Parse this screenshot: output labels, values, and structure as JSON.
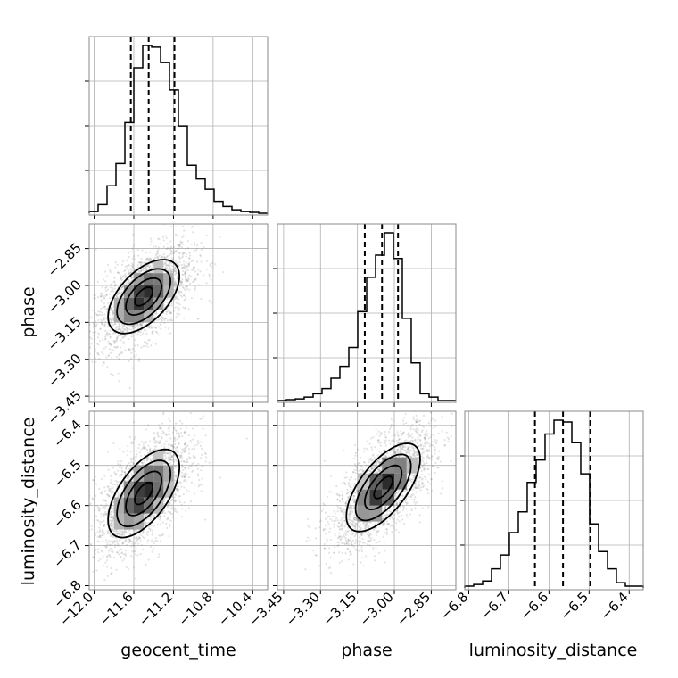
{
  "chart_data": {
    "type": "corner",
    "parameters": [
      "geocent_time",
      "phase",
      "luminosity_distance"
    ],
    "ranges": {
      "geocent_time": [
        -12.05,
        -10.25
      ],
      "phase": [
        -3.475,
        -2.75
      ],
      "luminosity_distance": [
        -6.81,
        -6.365
      ]
    },
    "ticks": {
      "geocent_time": [
        -12.0,
        -11.6,
        -11.2,
        -10.8,
        -10.4
      ],
      "phase": [
        -3.45,
        -3.3,
        -3.15,
        -3.0,
        -2.85
      ],
      "luminosity_distance": [
        -6.8,
        -6.7,
        -6.6,
        -6.5,
        -6.4
      ]
    },
    "tick_labels": {
      "geocent_time": [
        "−12.0",
        "−11.6",
        "−11.2",
        "−10.8",
        "−10.4"
      ],
      "phase": [
        "−3.45",
        "−3.30",
        "−3.15",
        "−3.00",
        "−2.85"
      ],
      "luminosity_distance": [
        "−6.8",
        "−6.7",
        "−6.6",
        "−6.5",
        "−6.4"
      ]
    },
    "quantiles": {
      "geocent_time": [
        -11.63,
        -11.45,
        -11.19
      ],
      "phase": [
        -3.12,
        -3.05,
        -2.985
      ],
      "luminosity_distance": [
        -6.635,
        -6.565,
        -6.497
      ]
    },
    "histograms": {
      "geocent_time": {
        "edges": [
          -12.05,
          -11.96,
          -11.87,
          -11.78,
          -11.69,
          -11.6,
          -11.51,
          -11.42,
          -11.33,
          -11.24,
          -11.15,
          -11.06,
          -10.97,
          -10.88,
          -10.79,
          -10.7,
          -10.61,
          -10.52,
          -10.43,
          -10.34,
          -10.25
        ],
        "counts": [
          0.01,
          0.05,
          0.16,
          0.29,
          0.53,
          0.85,
          0.98,
          0.97,
          0.88,
          0.72,
          0.51,
          0.28,
          0.2,
          0.14,
          0.07,
          0.04,
          0.02,
          0.01,
          0.005,
          0.0
        ]
      },
      "phase": {
        "edges": [
          -3.475,
          -3.4388,
          -3.4025,
          -3.3663,
          -3.33,
          -3.2938,
          -3.2575,
          -3.2213,
          -3.185,
          -3.1488,
          -3.1125,
          -3.0763,
          -3.04,
          -3.0038,
          -2.9675,
          -2.9313,
          -2.895,
          -2.8588,
          -2.8225,
          -2.7863,
          -2.75
        ],
        "counts": [
          0.0,
          0.005,
          0.01,
          0.02,
          0.04,
          0.07,
          0.13,
          0.2,
          0.31,
          0.52,
          0.72,
          0.85,
          0.98,
          0.83,
          0.48,
          0.22,
          0.04,
          0.02,
          0.0,
          0.0
        ]
      },
      "luminosity_distance": {
        "edges": [
          -6.81,
          -6.7878,
          -6.7655,
          -6.7433,
          -6.721,
          -6.6988,
          -6.6765,
          -6.6543,
          -6.632,
          -6.6098,
          -6.5875,
          -6.5653,
          -6.543,
          -6.5208,
          -6.4985,
          -6.4763,
          -6.454,
          -6.4318,
          -6.4095,
          -6.3873,
          -6.365
        ],
        "counts": [
          0.01,
          0.02,
          0.04,
          0.11,
          0.19,
          0.32,
          0.44,
          0.61,
          0.74,
          0.89,
          0.97,
          0.96,
          0.84,
          0.66,
          0.37,
          0.21,
          0.11,
          0.03,
          0.01,
          0.01
        ]
      }
    },
    "contours_2d": [
      {
        "x": "geocent_time",
        "y": "phase",
        "center": [
          -11.5,
          -3.045
        ],
        "sigma": [
          0.18,
          0.075
        ],
        "rho": 0.55,
        "levels_sigma": [
          0.5,
          1.0,
          1.5,
          2.0
        ],
        "grid": {
          "x_edges": [
            -11.8,
            -11.7,
            -11.6,
            -11.5,
            -11.4,
            -11.3,
            -11.2
          ],
          "y_edges": [
            -3.2,
            -3.15,
            -3.1,
            -3.05,
            -3.0,
            -2.95,
            -2.9
          ]
        }
      },
      {
        "x": "geocent_time",
        "y": "luminosity_distance",
        "center": [
          -11.5,
          -6.57
        ],
        "sigma": [
          0.18,
          0.055
        ],
        "rho": 0.6,
        "levels_sigma": [
          0.5,
          1.0,
          1.5,
          2.0
        ],
        "grid": {
          "x_edges": [
            -11.8,
            -11.7,
            -11.6,
            -11.5,
            -11.4,
            -11.3,
            -11.2
          ],
          "y_edges": [
            -6.7,
            -6.66,
            -6.62,
            -6.58,
            -6.54,
            -6.5,
            -6.46
          ]
        }
      },
      {
        "x": "phase",
        "y": "luminosity_distance",
        "center": [
          -3.045,
          -6.555
        ],
        "sigma": [
          0.075,
          0.055
        ],
        "rho": 0.65,
        "levels_sigma": [
          0.5,
          1.0,
          1.5,
          2.0
        ],
        "grid": {
          "x_edges": [
            -3.2,
            -3.15,
            -3.1,
            -3.05,
            -3.0,
            -2.95,
            -2.9
          ],
          "y_edges": [
            -6.68,
            -6.64,
            -6.6,
            -6.56,
            -6.52,
            -6.48,
            -6.44
          ]
        }
      }
    ],
    "scatter_color": "#808080",
    "grid": true
  },
  "colors": {
    "line": "#000000",
    "grid": "#b0b0b0",
    "frame": "#888888"
  }
}
